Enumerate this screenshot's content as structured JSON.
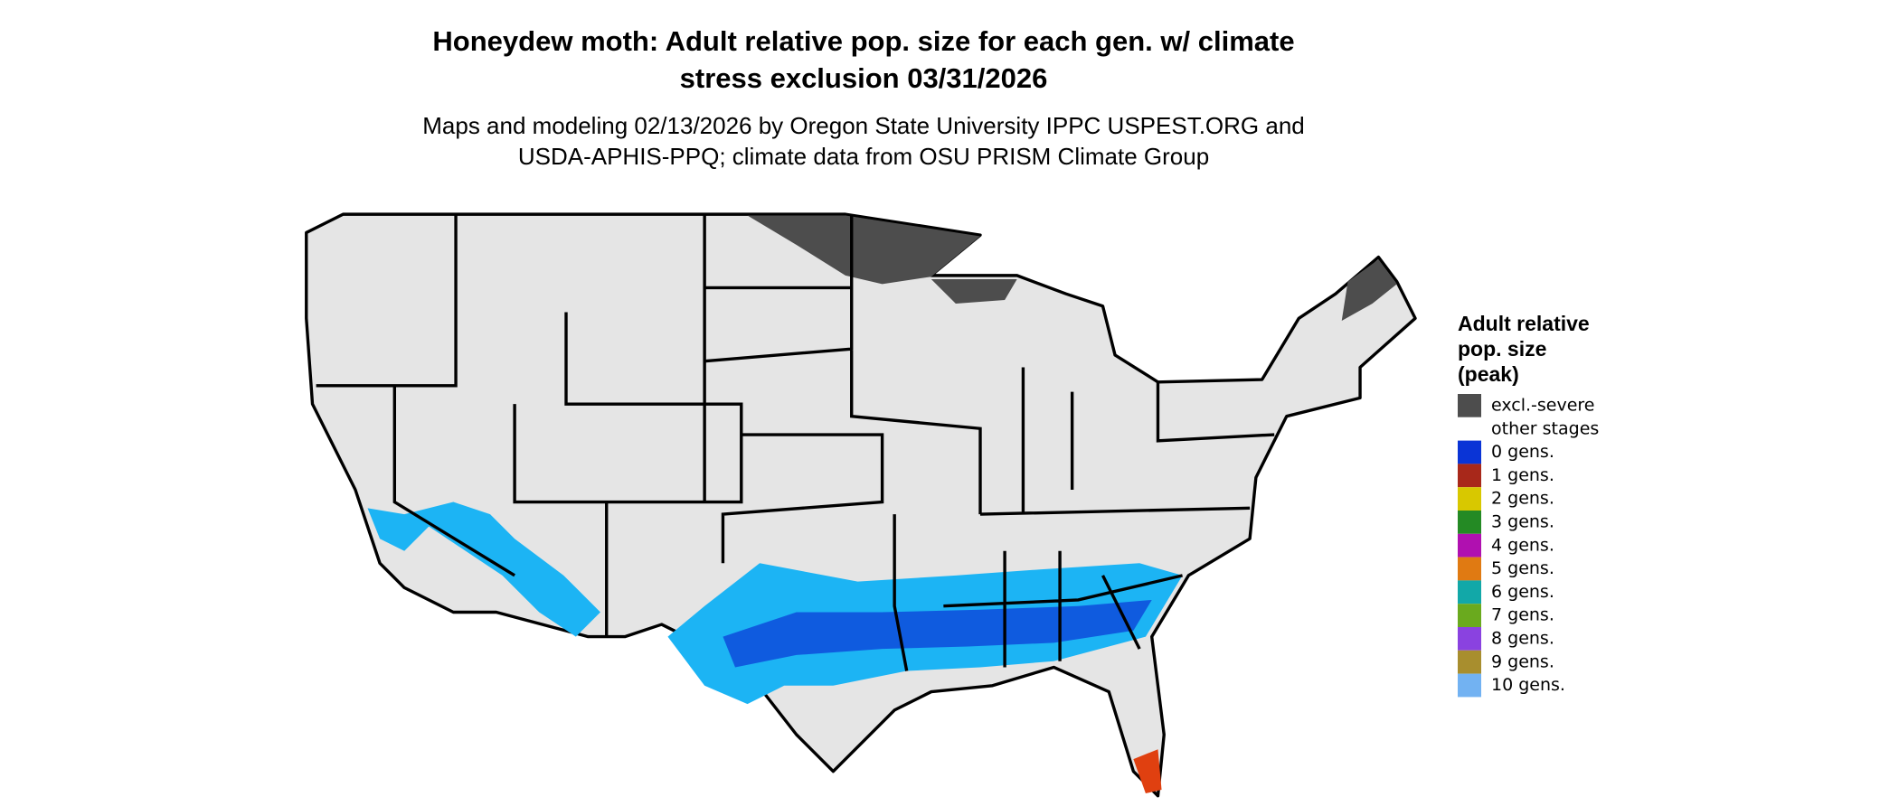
{
  "title": [
    "Honeydew moth: Adult relative pop. size for each gen. w/ climate",
    "stress exclusion 03/31/2026"
  ],
  "subtitle": [
    "Maps and modeling 02/13/2026 by Oregon State University IPPC USPEST.ORG and",
    "USDA-APHIS-PPQ; climate data from OSU PRISM Climate Group"
  ],
  "legend": {
    "title": [
      "Adult relative",
      "pop. size",
      "(peak)"
    ],
    "items": [
      {
        "label": "excl.-severe",
        "color": "#4d4d4d"
      },
      {
        "label": "other stages",
        "color": "#ffffff"
      },
      {
        "label": "0 gens.",
        "color": "#0a34d6"
      },
      {
        "label": "1 gens.",
        "color": "#a8281a"
      },
      {
        "label": "2 gens.",
        "color": "#d8c800"
      },
      {
        "label": "3 gens.",
        "color": "#248a24"
      },
      {
        "label": "4 gens.",
        "color": "#b010b0"
      },
      {
        "label": "5 gens.",
        "color": "#e07a12"
      },
      {
        "label": "6 gens.",
        "color": "#12a8a8"
      },
      {
        "label": "7 gens.",
        "color": "#6aaa1e"
      },
      {
        "label": "8 gens.",
        "color": "#8a42e0"
      },
      {
        "label": "9 gens.",
        "color": "#a88e2e"
      },
      {
        "label": "10 gens.",
        "color": "#72b2f2"
      }
    ]
  }
}
